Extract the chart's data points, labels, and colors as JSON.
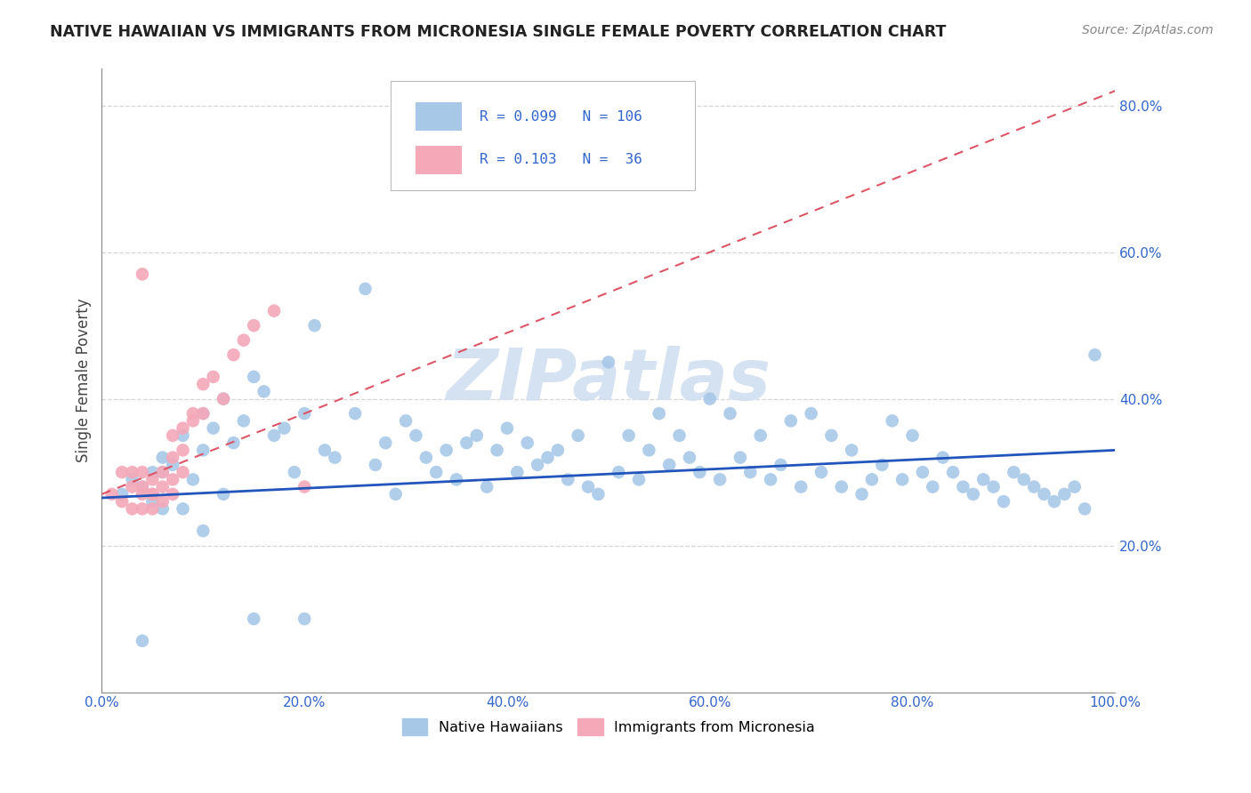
{
  "title": "NATIVE HAWAIIAN VS IMMIGRANTS FROM MICRONESIA SINGLE FEMALE POVERTY CORRELATION CHART",
  "source": "Source: ZipAtlas.com",
  "ylabel": "Single Female Poverty",
  "watermark": "ZIPatlas",
  "blue_color": "#a8c8e8",
  "pink_color": "#f4a8b8",
  "trend_blue_color": "#2255bb",
  "trend_pink_color": "#dd5566",
  "xlim": [
    0.0,
    1.0
  ],
  "ylim": [
    0.0,
    0.85
  ],
  "xticks": [
    0.0,
    0.2,
    0.4,
    0.6,
    0.8,
    1.0
  ],
  "yticks": [
    0.2,
    0.4,
    0.6,
    0.8
  ],
  "xticklabels": [
    "0.0%",
    "20.0%",
    "40.0%",
    "60.0%",
    "80.0%",
    "100.0%"
  ],
  "yticklabels": [
    "20.0%",
    "40.0%",
    "60.0%",
    "80.0%"
  ],
  "blue_intercept": 0.265,
  "blue_slope": 0.065,
  "pink_intercept": 0.27,
  "pink_slope": 0.55,
  "blue_x": [
    0.02,
    0.03,
    0.04,
    0.05,
    0.05,
    0.06,
    0.06,
    0.07,
    0.08,
    0.09,
    0.1,
    0.1,
    0.11,
    0.12,
    0.12,
    0.13,
    0.14,
    0.15,
    0.16,
    0.17,
    0.18,
    0.19,
    0.2,
    0.21,
    0.22,
    0.23,
    0.25,
    0.26,
    0.27,
    0.28,
    0.29,
    0.3,
    0.31,
    0.32,
    0.33,
    0.34,
    0.35,
    0.36,
    0.37,
    0.38,
    0.39,
    0.4,
    0.41,
    0.42,
    0.43,
    0.44,
    0.45,
    0.46,
    0.47,
    0.48,
    0.49,
    0.5,
    0.51,
    0.52,
    0.53,
    0.54,
    0.55,
    0.56,
    0.57,
    0.58,
    0.59,
    0.6,
    0.61,
    0.62,
    0.63,
    0.64,
    0.65,
    0.66,
    0.67,
    0.68,
    0.69,
    0.7,
    0.71,
    0.72,
    0.73,
    0.74,
    0.75,
    0.76,
    0.77,
    0.78,
    0.79,
    0.8,
    0.81,
    0.82,
    0.83,
    0.84,
    0.85,
    0.86,
    0.87,
    0.88,
    0.89,
    0.9,
    0.91,
    0.92,
    0.93,
    0.94,
    0.95,
    0.96,
    0.97,
    0.98,
    0.04,
    0.06,
    0.08,
    0.1,
    0.15,
    0.2
  ],
  "blue_y": [
    0.27,
    0.29,
    0.28,
    0.3,
    0.26,
    0.32,
    0.25,
    0.31,
    0.35,
    0.29,
    0.38,
    0.33,
    0.36,
    0.27,
    0.4,
    0.34,
    0.37,
    0.43,
    0.41,
    0.35,
    0.36,
    0.3,
    0.38,
    0.5,
    0.33,
    0.32,
    0.38,
    0.55,
    0.31,
    0.34,
    0.27,
    0.37,
    0.35,
    0.32,
    0.3,
    0.33,
    0.29,
    0.34,
    0.35,
    0.28,
    0.33,
    0.36,
    0.3,
    0.34,
    0.31,
    0.32,
    0.33,
    0.29,
    0.35,
    0.28,
    0.27,
    0.45,
    0.3,
    0.35,
    0.29,
    0.33,
    0.38,
    0.31,
    0.35,
    0.32,
    0.3,
    0.4,
    0.29,
    0.38,
    0.32,
    0.3,
    0.35,
    0.29,
    0.31,
    0.37,
    0.28,
    0.38,
    0.3,
    0.35,
    0.28,
    0.33,
    0.27,
    0.29,
    0.31,
    0.37,
    0.29,
    0.35,
    0.3,
    0.28,
    0.32,
    0.3,
    0.28,
    0.27,
    0.29,
    0.28,
    0.26,
    0.3,
    0.29,
    0.28,
    0.27,
    0.26,
    0.27,
    0.28,
    0.25,
    0.46,
    0.07,
    0.3,
    0.25,
    0.22,
    0.1,
    0.1
  ],
  "pink_x": [
    0.01,
    0.02,
    0.02,
    0.03,
    0.03,
    0.03,
    0.04,
    0.04,
    0.04,
    0.04,
    0.05,
    0.05,
    0.05,
    0.05,
    0.06,
    0.06,
    0.06,
    0.07,
    0.07,
    0.07,
    0.07,
    0.08,
    0.08,
    0.08,
    0.09,
    0.09,
    0.1,
    0.1,
    0.11,
    0.12,
    0.13,
    0.14,
    0.15,
    0.17,
    0.2,
    0.04
  ],
  "pink_y": [
    0.27,
    0.3,
    0.26,
    0.3,
    0.28,
    0.25,
    0.27,
    0.3,
    0.28,
    0.25,
    0.29,
    0.27,
    0.25,
    0.27,
    0.3,
    0.28,
    0.26,
    0.32,
    0.29,
    0.27,
    0.35,
    0.36,
    0.33,
    0.3,
    0.37,
    0.38,
    0.42,
    0.38,
    0.43,
    0.4,
    0.46,
    0.48,
    0.5,
    0.52,
    0.28,
    0.57
  ]
}
